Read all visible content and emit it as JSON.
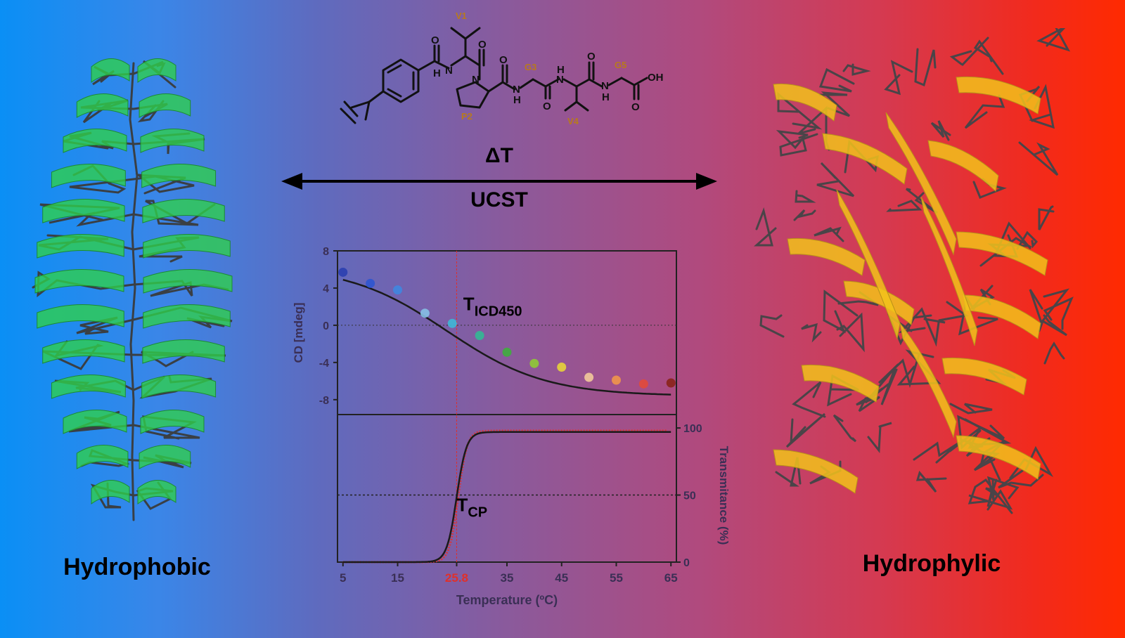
{
  "molecule": {
    "residues": [
      "V1",
      "P2",
      "G3",
      "V4",
      "G5"
    ],
    "atoms": {
      "O": "O",
      "N": "N",
      "H": "H",
      "OH": "OH"
    }
  },
  "arrow": {
    "top": "ΔT",
    "bottom": "UCST"
  },
  "left_label": "Hydrophobic",
  "right_label": "Hydrophylic",
  "colors": {
    "left_helix": "#2fd14a",
    "right_helix": "#f2c21b",
    "accent_red": "#e0302a"
  },
  "chart_data": {
    "type": "scatter",
    "xlabel": "Temperature (ºC)",
    "x_ticks": [
      "5",
      "15",
      "25.8",
      "35",
      "45",
      "55",
      "65"
    ],
    "x_range": [
      4,
      66
    ],
    "tm_marker": 25.8,
    "top_panel": {
      "ylabel": "CD [mdeg]",
      "y_ticks": [
        "8",
        "4",
        "0",
        "-4",
        "-8"
      ],
      "ylim": [
        -9.6,
        8
      ],
      "annotation": {
        "main": "T",
        "sub": "ICD450"
      },
      "points": [
        {
          "x": 5,
          "y": 5.7,
          "color": "#2b3fb0"
        },
        {
          "x": 10,
          "y": 4.5,
          "color": "#2f55d0"
        },
        {
          "x": 15,
          "y": 3.8,
          "color": "#3f86e0"
        },
        {
          "x": 20,
          "y": 1.3,
          "color": "#86c0e4"
        },
        {
          "x": 25,
          "y": 0.2,
          "color": "#3fb7d6"
        },
        {
          "x": 30,
          "y": -1.1,
          "color": "#33b894"
        },
        {
          "x": 35,
          "y": -2.9,
          "color": "#3fae3e"
        },
        {
          "x": 40,
          "y": -4.1,
          "color": "#8fcb34"
        },
        {
          "x": 45,
          "y": -4.5,
          "color": "#e6d33a"
        },
        {
          "x": 50,
          "y": -5.6,
          "color": "#f2c99a"
        },
        {
          "x": 55,
          "y": -5.9,
          "color": "#f0954a"
        },
        {
          "x": 60,
          "y": -6.3,
          "color": "#e24a3a"
        },
        {
          "x": 65,
          "y": -6.2,
          "color": "#8a2418"
        }
      ]
    },
    "bottom_panel": {
      "ylabel": "Transmitance (%)",
      "y_ticks": [
        "100",
        "50",
        "0"
      ],
      "ylim": [
        0,
        110
      ],
      "midline": 50,
      "annotation": {
        "main": "T",
        "sub": "CP"
      }
    }
  }
}
